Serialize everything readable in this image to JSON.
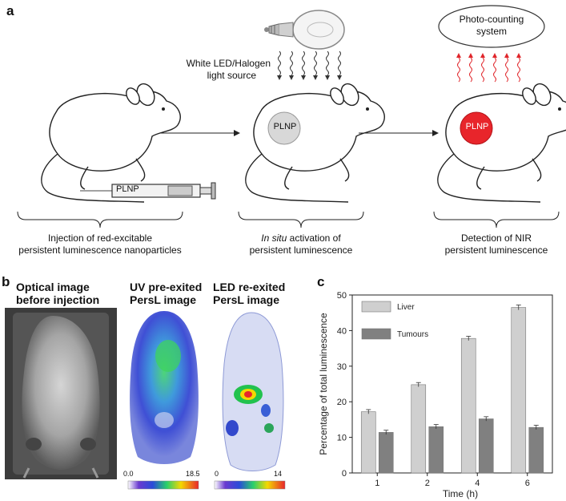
{
  "panels": {
    "a": {
      "letter": "a",
      "light_source_label_line1": "White LED/Halogen",
      "light_source_label_line2": "light source",
      "photocounting_label_line1": "Photo-counting",
      "photocounting_label_line2": "system",
      "plnp_label": "PLNP",
      "syringe_label": "PLNP",
      "step1_caption_line1": "Injection of red-excitable",
      "step1_caption_line2": "persistent luminescence nanoparticles",
      "step2_caption_italic": "In situ",
      "step2_caption_rest": " activation of",
      "step2_caption_line2": "persistent luminescence",
      "step3_caption_line1": "Detection of NIR",
      "step3_caption_line2": "persistent luminescence"
    },
    "b": {
      "letter": "b",
      "title1_line1": "Optical image",
      "title1_line2": "before injection",
      "title2_line1": "UV pre-exited",
      "title2_line2": "PersL image",
      "title3_line1": "LED re-exited",
      "title3_line2": "PersL image",
      "scale1_min": "0.0",
      "scale1_max": "18.5",
      "scale2_min": "0",
      "scale2_max": "14"
    },
    "c": {
      "letter": "c"
    }
  },
  "chart_data": {
    "type": "bar",
    "categories": [
      "1",
      "2",
      "4",
      "6"
    ],
    "series": [
      {
        "name": "Liver",
        "values": [
          17.2,
          24.8,
          37.8,
          46.5
        ],
        "errors": [
          0.6,
          0.6,
          0.6,
          0.7
        ],
        "color": "#cfcfcf"
      },
      {
        "name": "Tumours",
        "values": [
          11.4,
          13.0,
          15.2,
          12.8
        ],
        "errors": [
          0.6,
          0.6,
          0.6,
          0.6
        ],
        "color": "#808080"
      }
    ],
    "xlabel": "Time (h)",
    "ylabel": "Percentage of total luminescence",
    "ylim": [
      0,
      50
    ],
    "yticks": [
      0,
      10,
      20,
      30,
      40,
      50
    ],
    "grid": false,
    "legend_position": "top-left"
  },
  "colors": {
    "plnp_active": "#e8252b",
    "plnp_inactive": "#d8d8d8",
    "emission_arrows": "#e0262b",
    "excitation_arrows": "#333333"
  }
}
